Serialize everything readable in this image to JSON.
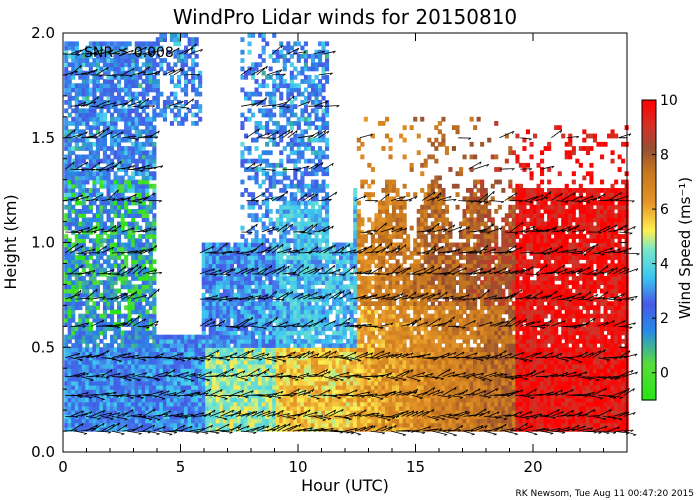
{
  "chart_data": {
    "type": "heatmap",
    "title": "WindPro Lidar winds for 20150810",
    "xlabel": "Hour (UTC)",
    "ylabel": "Height (km)",
    "xlim": [
      0,
      24
    ],
    "ylim": [
      0,
      2.0
    ],
    "xticks": [
      0,
      5,
      10,
      15,
      20
    ],
    "xtick_labels": [
      "0",
      "5",
      "10",
      "15",
      "20"
    ],
    "yticks": [
      0.0,
      0.5,
      1.0,
      1.5,
      2.0
    ],
    "ytick_labels": [
      "0.0",
      "0.5",
      "1.0",
      "1.5",
      "2.0"
    ],
    "annotation": "SNR > 0.008",
    "footer": "RK Newsom, Tue Aug 11 00:47:20 2015",
    "colorbar": {
      "label": "Wind Speed (ms⁻¹)",
      "range": [
        -1,
        10
      ],
      "ticks": [
        0,
        2,
        4,
        6,
        8,
        10
      ],
      "tick_labels": [
        "0",
        "2",
        "4",
        "6",
        "8",
        "10"
      ]
    },
    "vector_heights_km": [
      0.1,
      0.17,
      0.27,
      0.36,
      0.45,
      0.6,
      0.73,
      0.85,
      0.95,
      1.05,
      1.2,
      1.35,
      1.5,
      1.65,
      1.8,
      1.9
    ],
    "wind_regimes": [
      {
        "hours": [
          0,
          5
        ],
        "height_km": [
          0.1,
          0.5
        ],
        "speed_ms": 2.5
      },
      {
        "hours": [
          5,
          9
        ],
        "height_km": [
          0.1,
          0.5
        ],
        "speed_ms": 4.5
      },
      {
        "hours": [
          9,
          13
        ],
        "height_km": [
          0.1,
          0.5
        ],
        "speed_ms": 5.5
      },
      {
        "hours": [
          13,
          19
        ],
        "height_km": [
          0.1,
          0.5
        ],
        "speed_ms": 7.0
      },
      {
        "hours": [
          19,
          24
        ],
        "height_km": [
          0.1,
          0.5
        ],
        "speed_ms": 9.5
      },
      {
        "hours": [
          0,
          4
        ],
        "height_km": [
          0.5,
          1.3
        ],
        "speed_ms": 1.5
      },
      {
        "hours": [
          6,
          11
        ],
        "height_km": [
          0.5,
          1.0
        ],
        "speed_ms": 3.0
      },
      {
        "hours": [
          13,
          19
        ],
        "height_km": [
          0.5,
          1.2
        ],
        "speed_ms": 6.5
      },
      {
        "hours": [
          19,
          24
        ],
        "height_km": [
          0.5,
          1.2
        ],
        "speed_ms": 9.5
      }
    ]
  }
}
